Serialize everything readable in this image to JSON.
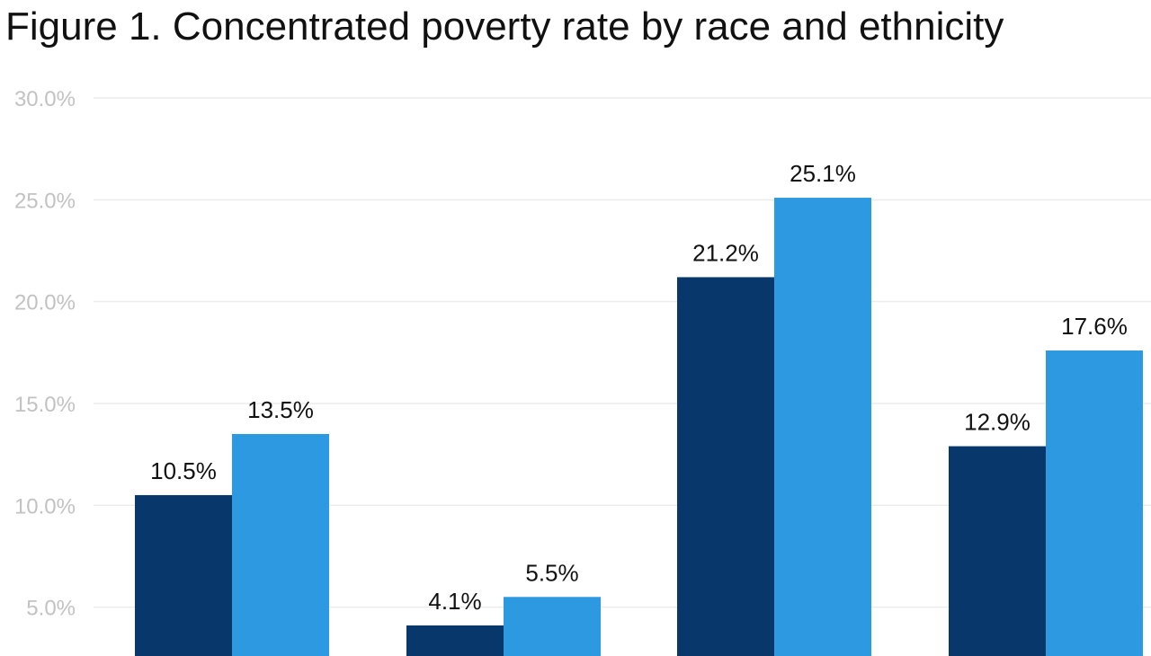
{
  "chart_data": {
    "type": "bar",
    "title": "Figure 1. Concentrated poverty rate by race and ethnicity",
    "categories": [
      "",
      "",
      "",
      ""
    ],
    "series": [
      {
        "name": "",
        "color": "#08376b",
        "values": [
          10.5,
          4.1,
          21.2,
          12.9
        ]
      },
      {
        "name": "",
        "color": "#2c99e0",
        "values": [
          13.5,
          5.5,
          25.1,
          17.6
        ]
      }
    ],
    "data_labels": [
      [
        "10.5%",
        "4.1%",
        "21.2%",
        "12.9%"
      ],
      [
        "13.5%",
        "5.5%",
        "25.1%",
        "17.6%"
      ]
    ],
    "y_ticks": [
      5,
      10,
      15,
      20,
      25,
      30
    ],
    "y_tick_labels": [
      "5.0%",
      "10.0%",
      "15.0%",
      "20.0%",
      "25.0%",
      "30.0%"
    ],
    "ylim": [
      2.6,
      30
    ],
    "grid": true,
    "xlabel": "",
    "ylabel": ""
  }
}
